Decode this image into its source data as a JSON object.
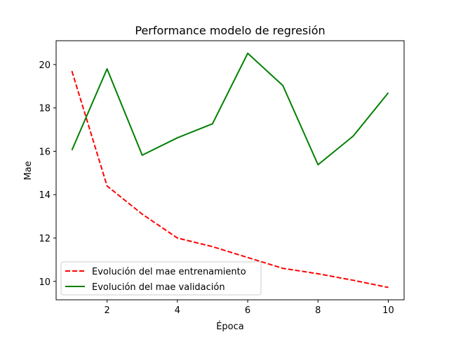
{
  "chart_data": {
    "type": "line",
    "title": "Performance modelo de regresión",
    "xlabel": "Época",
    "ylabel": "Mae",
    "x": [
      1,
      2,
      3,
      4,
      5,
      6,
      7,
      8,
      9,
      10
    ],
    "xlim": [
      0.55,
      10.45
    ],
    "ylim": [
      9.15,
      21.1
    ],
    "xticks": [
      2,
      4,
      6,
      8,
      10
    ],
    "yticks": [
      10,
      12,
      14,
      16,
      18,
      20
    ],
    "grid": false,
    "legend_position": "lower-left",
    "series": [
      {
        "name": "Evolución del mae entrenamiento",
        "values": [
          19.7,
          14.4,
          13.1,
          12.0,
          11.6,
          11.1,
          10.6,
          10.35,
          10.05,
          9.72
        ],
        "color": "#ff0000",
        "style": "dashed"
      },
      {
        "name": "Evolución del mae validación",
        "values": [
          16.05,
          19.8,
          15.82,
          16.62,
          17.27,
          20.52,
          19.03,
          15.38,
          16.7,
          18.7
        ],
        "color": "#008000",
        "style": "solid"
      }
    ]
  }
}
